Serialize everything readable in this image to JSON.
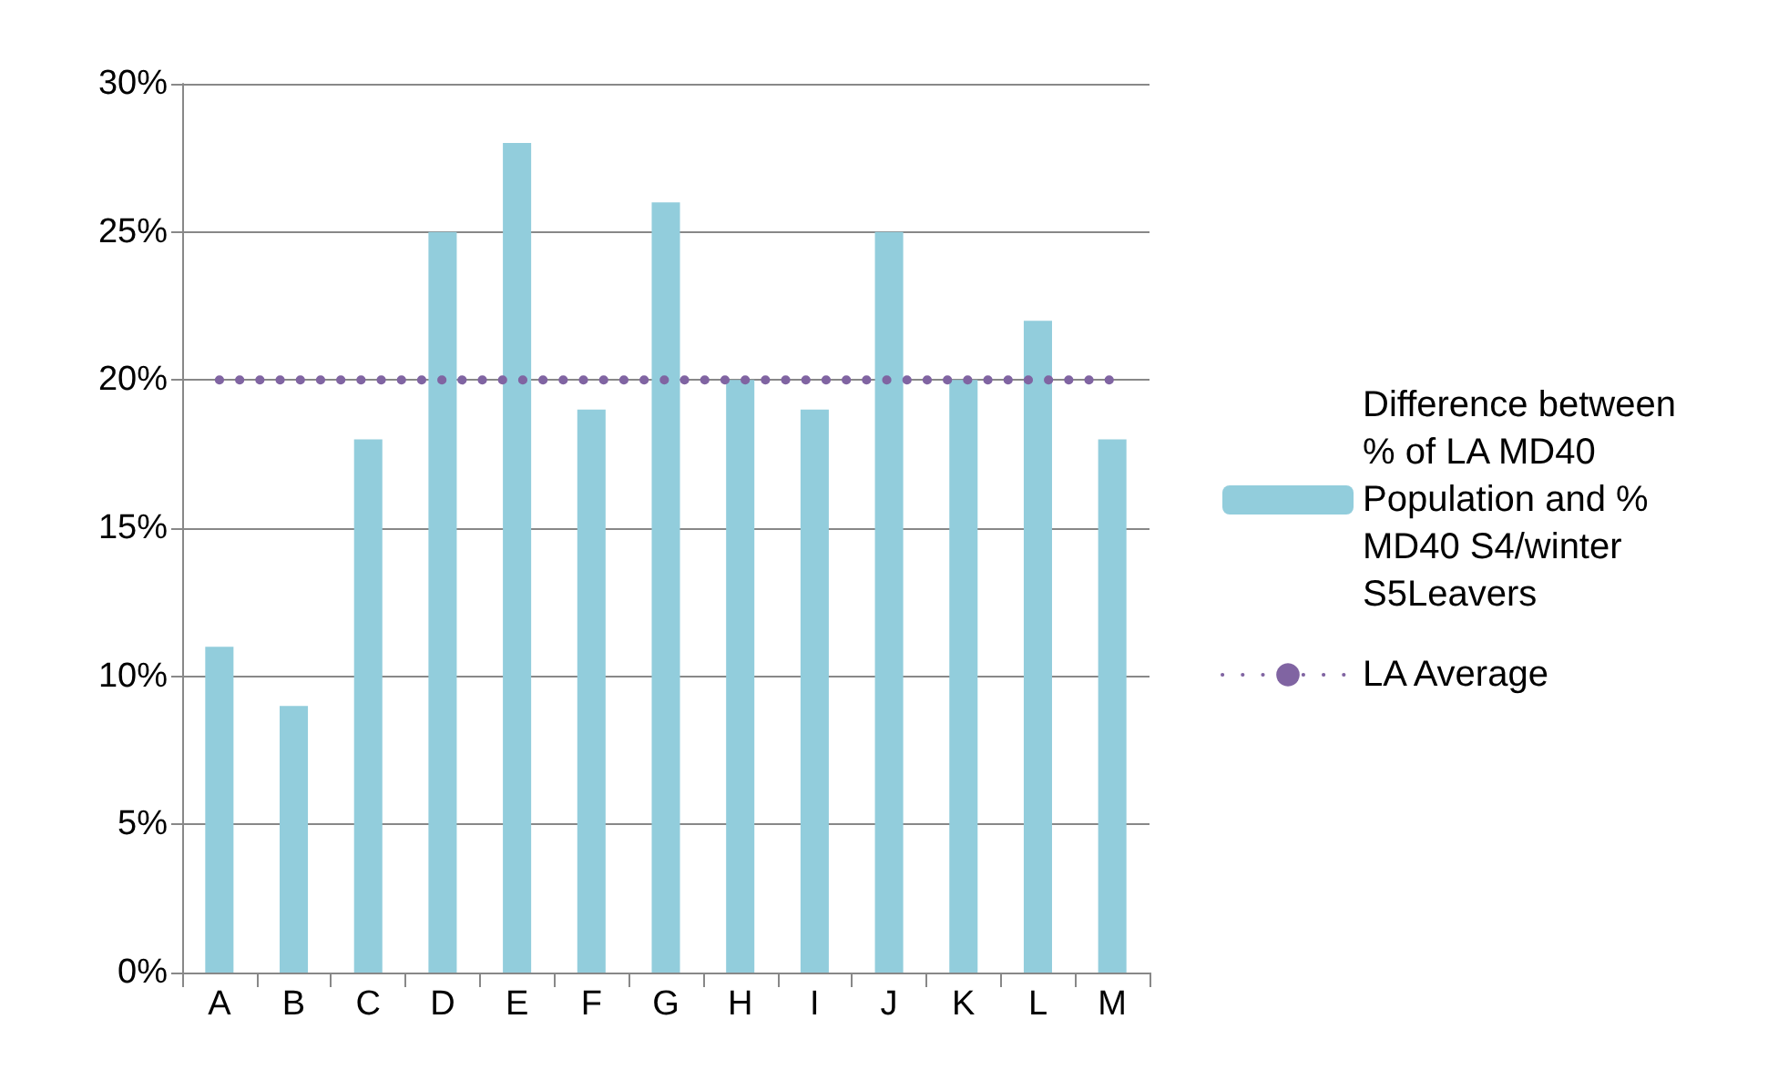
{
  "chart_data": {
    "type": "bar",
    "categories": [
      "A",
      "B",
      "C",
      "D",
      "E",
      "F",
      "G",
      "H",
      "I",
      "J",
      "K",
      "L",
      "M"
    ],
    "series": [
      {
        "name": "Difference between % of LA MD40 Population and % MD40 S4/winter S5Leavers",
        "color": "#92cddc",
        "values": [
          11,
          9,
          18,
          25,
          28,
          19,
          26,
          20,
          19,
          25,
          20,
          22,
          18
        ]
      },
      {
        "name": "LA Average",
        "type": "line",
        "color": "#8064a2",
        "marker": "none",
        "line_style": "dotted",
        "values": [
          20,
          20,
          20,
          20,
          20,
          20,
          20,
          20,
          20,
          20,
          20,
          20,
          20
        ]
      }
    ],
    "ylim": [
      0,
      30
    ],
    "yticks": [
      {
        "value": 0,
        "label": "0%"
      },
      {
        "value": 5,
        "label": "5%"
      },
      {
        "value": 10,
        "label": "10%"
      },
      {
        "value": 15,
        "label": "15%"
      },
      {
        "value": 20,
        "label": "20%"
      },
      {
        "value": 25,
        "label": "25%"
      },
      {
        "value": 30,
        "label": "30%"
      }
    ],
    "grid": "y",
    "legend": "right"
  }
}
